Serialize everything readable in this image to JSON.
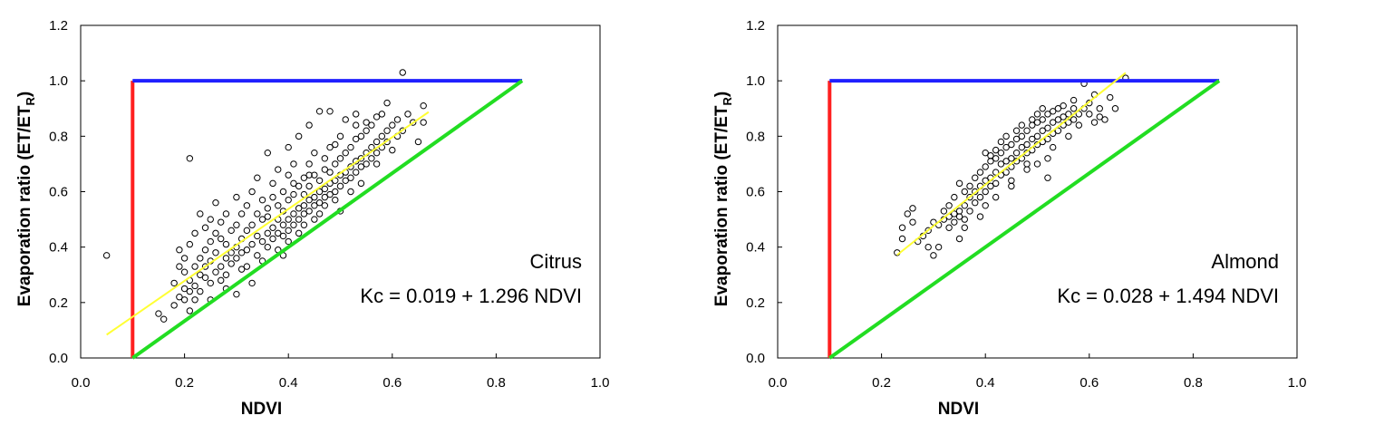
{
  "chart_data": [
    {
      "type": "scatter",
      "title": "",
      "xlabel": "NDVI",
      "ylabel_main": "Evaporation ratio (ET/ET",
      "ylabel_sub": "R",
      "ylabel_end": ")",
      "xlim": [
        0.0,
        1.0
      ],
      "ylim": [
        0.0,
        1.2
      ],
      "xticks": [
        "0.0",
        "0.2",
        "0.4",
        "0.6",
        "0.8",
        "1.0"
      ],
      "yticks": [
        "0.0",
        "0.2",
        "0.4",
        "0.6",
        "0.8",
        "1.0",
        "1.2"
      ],
      "annotation_name": "Citrus",
      "annotation_equation": "Kc = 0.019 + 1.296 NDVI",
      "regression": {
        "intercept": 0.019,
        "slope": 1.296,
        "x_range": [
          0.05,
          0.67
        ],
        "color": "#ffff33"
      },
      "ref_lines": [
        {
          "label": "vertical",
          "x": [
            0.1,
            0.1
          ],
          "y": [
            0.0,
            1.0
          ],
          "color": "#ff2020"
        },
        {
          "label": "upper",
          "x": [
            0.1,
            0.85
          ],
          "y": [
            1.0,
            1.0
          ],
          "color": "#2020ff"
        },
        {
          "label": "diagonal",
          "x": [
            0.1,
            0.85
          ],
          "y": [
            0.0,
            1.0
          ],
          "color": "#22dd22"
        }
      ],
      "points": [
        [
          0.05,
          0.37
        ],
        [
          0.15,
          0.16
        ],
        [
          0.16,
          0.14
        ],
        [
          0.18,
          0.19
        ],
        [
          0.21,
          0.72
        ],
        [
          0.62,
          1.03
        ],
        [
          0.18,
          0.27
        ],
        [
          0.19,
          0.33
        ],
        [
          0.19,
          0.22
        ],
        [
          0.19,
          0.39
        ],
        [
          0.2,
          0.25
        ],
        [
          0.2,
          0.31
        ],
        [
          0.2,
          0.21
        ],
        [
          0.2,
          0.36
        ],
        [
          0.21,
          0.28
        ],
        [
          0.21,
          0.24
        ],
        [
          0.21,
          0.41
        ],
        [
          0.21,
          0.17
        ],
        [
          0.22,
          0.33
        ],
        [
          0.22,
          0.26
        ],
        [
          0.22,
          0.45
        ],
        [
          0.22,
          0.21
        ],
        [
          0.23,
          0.3
        ],
        [
          0.23,
          0.36
        ],
        [
          0.23,
          0.52
        ],
        [
          0.23,
          0.24
        ],
        [
          0.24,
          0.29
        ],
        [
          0.24,
          0.39
        ],
        [
          0.24,
          0.47
        ],
        [
          0.24,
          0.33
        ],
        [
          0.25,
          0.27
        ],
        [
          0.25,
          0.42
        ],
        [
          0.25,
          0.5
        ],
        [
          0.25,
          0.35
        ],
        [
          0.26,
          0.31
        ],
        [
          0.26,
          0.45
        ],
        [
          0.26,
          0.38
        ],
        [
          0.26,
          0.56
        ],
        [
          0.27,
          0.33
        ],
        [
          0.27,
          0.28
        ],
        [
          0.27,
          0.43
        ],
        [
          0.27,
          0.49
        ],
        [
          0.28,
          0.36
        ],
        [
          0.28,
          0.41
        ],
        [
          0.28,
          0.52
        ],
        [
          0.28,
          0.3
        ],
        [
          0.29,
          0.38
        ],
        [
          0.29,
          0.46
        ],
        [
          0.29,
          0.34
        ],
        [
          0.3,
          0.4
        ],
        [
          0.3,
          0.48
        ],
        [
          0.3,
          0.58
        ],
        [
          0.3,
          0.23
        ],
        [
          0.3,
          0.36
        ],
        [
          0.31,
          0.43
        ],
        [
          0.31,
          0.38
        ],
        [
          0.31,
          0.52
        ],
        [
          0.32,
          0.39
        ],
        [
          0.32,
          0.46
        ],
        [
          0.32,
          0.55
        ],
        [
          0.32,
          0.33
        ],
        [
          0.33,
          0.41
        ],
        [
          0.33,
          0.48
        ],
        [
          0.33,
          0.6
        ],
        [
          0.34,
          0.44
        ],
        [
          0.34,
          0.37
        ],
        [
          0.34,
          0.52
        ],
        [
          0.34,
          0.65
        ],
        [
          0.35,
          0.42
        ],
        [
          0.35,
          0.5
        ],
        [
          0.35,
          0.35
        ],
        [
          0.35,
          0.57
        ],
        [
          0.36,
          0.45
        ],
        [
          0.36,
          0.4
        ],
        [
          0.36,
          0.54
        ],
        [
          0.36,
          0.74
        ],
        [
          0.37,
          0.47
        ],
        [
          0.37,
          0.43
        ],
        [
          0.37,
          0.58
        ],
        [
          0.37,
          0.63
        ],
        [
          0.38,
          0.45
        ],
        [
          0.38,
          0.5
        ],
        [
          0.38,
          0.55
        ],
        [
          0.38,
          0.68
        ],
        [
          0.38,
          0.39
        ],
        [
          0.39,
          0.48
        ],
        [
          0.39,
          0.44
        ],
        [
          0.39,
          0.6
        ],
        [
          0.39,
          0.53
        ],
        [
          0.4,
          0.5
        ],
        [
          0.4,
          0.46
        ],
        [
          0.4,
          0.57
        ],
        [
          0.4,
          0.66
        ],
        [
          0.4,
          0.76
        ],
        [
          0.4,
          0.42
        ],
        [
          0.41,
          0.52
        ],
        [
          0.41,
          0.48
        ],
        [
          0.41,
          0.59
        ],
        [
          0.41,
          0.7
        ],
        [
          0.42,
          0.54
        ],
        [
          0.42,
          0.5
        ],
        [
          0.42,
          0.45
        ],
        [
          0.42,
          0.62
        ],
        [
          0.42,
          0.8
        ],
        [
          0.43,
          0.55
        ],
        [
          0.43,
          0.52
        ],
        [
          0.43,
          0.65
        ],
        [
          0.43,
          0.48
        ],
        [
          0.43,
          0.59
        ],
        [
          0.44,
          0.57
        ],
        [
          0.44,
          0.53
        ],
        [
          0.44,
          0.62
        ],
        [
          0.44,
          0.7
        ],
        [
          0.44,
          0.84
        ],
        [
          0.45,
          0.58
        ],
        [
          0.45,
          0.55
        ],
        [
          0.45,
          0.5
        ],
        [
          0.45,
          0.66
        ],
        [
          0.45,
          0.74
        ],
        [
          0.46,
          0.6
        ],
        [
          0.46,
          0.56
        ],
        [
          0.46,
          0.64
        ],
        [
          0.46,
          0.52
        ],
        [
          0.46,
          0.89
        ],
        [
          0.47,
          0.61
        ],
        [
          0.47,
          0.58
        ],
        [
          0.47,
          0.68
        ],
        [
          0.47,
          0.72
        ],
        [
          0.47,
          0.55
        ],
        [
          0.48,
          0.63
        ],
        [
          0.48,
          0.59
        ],
        [
          0.48,
          0.67
        ],
        [
          0.48,
          0.76
        ],
        [
          0.48,
          0.89
        ],
        [
          0.49,
          0.64
        ],
        [
          0.49,
          0.6
        ],
        [
          0.49,
          0.7
        ],
        [
          0.49,
          0.57
        ],
        [
          0.5,
          0.66
        ],
        [
          0.5,
          0.62
        ],
        [
          0.5,
          0.72
        ],
        [
          0.5,
          0.8
        ],
        [
          0.5,
          0.53
        ],
        [
          0.51,
          0.67
        ],
        [
          0.51,
          0.64
        ],
        [
          0.51,
          0.74
        ],
        [
          0.51,
          0.86
        ],
        [
          0.52,
          0.69
        ],
        [
          0.52,
          0.65
        ],
        [
          0.52,
          0.76
        ],
        [
          0.52,
          0.6
        ],
        [
          0.53,
          0.71
        ],
        [
          0.53,
          0.67
        ],
        [
          0.53,
          0.79
        ],
        [
          0.53,
          0.88
        ],
        [
          0.54,
          0.72
        ],
        [
          0.54,
          0.69
        ],
        [
          0.54,
          0.8
        ],
        [
          0.54,
          0.63
        ],
        [
          0.55,
          0.74
        ],
        [
          0.55,
          0.7
        ],
        [
          0.55,
          0.82
        ],
        [
          0.55,
          0.85
        ],
        [
          0.56,
          0.76
        ],
        [
          0.56,
          0.72
        ],
        [
          0.56,
          0.84
        ],
        [
          0.57,
          0.78
        ],
        [
          0.57,
          0.74
        ],
        [
          0.57,
          0.87
        ],
        [
          0.58,
          0.8
        ],
        [
          0.58,
          0.76
        ],
        [
          0.58,
          0.88
        ],
        [
          0.59,
          0.82
        ],
        [
          0.59,
          0.78
        ],
        [
          0.59,
          0.92
        ],
        [
          0.6,
          0.84
        ],
        [
          0.6,
          0.75
        ],
        [
          0.61,
          0.86
        ],
        [
          0.61,
          0.8
        ],
        [
          0.62,
          0.82
        ],
        [
          0.63,
          0.88
        ],
        [
          0.64,
          0.85
        ],
        [
          0.65,
          0.78
        ],
        [
          0.66,
          0.85
        ],
        [
          0.66,
          0.91
        ],
        [
          0.41,
          0.63
        ],
        [
          0.44,
          0.66
        ],
        [
          0.36,
          0.51
        ],
        [
          0.39,
          0.37
        ],
        [
          0.33,
          0.27
        ],
        [
          0.28,
          0.25
        ],
        [
          0.25,
          0.21
        ],
        [
          0.31,
          0.32
        ],
        [
          0.49,
          0.77
        ],
        [
          0.53,
          0.84
        ],
        [
          0.57,
          0.7
        ]
      ]
    },
    {
      "type": "scatter",
      "title": "",
      "xlabel": "NDVI",
      "ylabel_main": "Evaporation ratio (ET/ET",
      "ylabel_sub": "R",
      "ylabel_end": ")",
      "xlim": [
        0.0,
        1.0
      ],
      "ylim": [
        0.0,
        1.2
      ],
      "xticks": [
        "0.0",
        "0.2",
        "0.4",
        "0.6",
        "0.8",
        "1.0"
      ],
      "yticks": [
        "0.0",
        "0.2",
        "0.4",
        "0.6",
        "0.8",
        "1.0",
        "1.2"
      ],
      "annotation_name": "Almond",
      "annotation_equation": "Kc = 0.028 + 1.494 NDVI",
      "regression": {
        "intercept": 0.028,
        "slope": 1.494,
        "x_range": [
          0.23,
          0.67
        ],
        "color": "#ffff33"
      },
      "ref_lines": [
        {
          "label": "vertical",
          "x": [
            0.1,
            0.1
          ],
          "y": [
            0.0,
            1.0
          ],
          "color": "#ff2020"
        },
        {
          "label": "upper",
          "x": [
            0.1,
            0.85
          ],
          "y": [
            1.0,
            1.0
          ],
          "color": "#2020ff"
        },
        {
          "label": "diagonal",
          "x": [
            0.1,
            0.85
          ],
          "y": [
            0.0,
            1.0
          ],
          "color": "#22dd22"
        }
      ],
      "points": [
        [
          0.23,
          0.38
        ],
        [
          0.24,
          0.43
        ],
        [
          0.24,
          0.47
        ],
        [
          0.25,
          0.52
        ],
        [
          0.26,
          0.54
        ],
        [
          0.26,
          0.49
        ],
        [
          0.27,
          0.42
        ],
        [
          0.28,
          0.44
        ],
        [
          0.29,
          0.46
        ],
        [
          0.29,
          0.4
        ],
        [
          0.3,
          0.37
        ],
        [
          0.3,
          0.49
        ],
        [
          0.31,
          0.4
        ],
        [
          0.31,
          0.48
        ],
        [
          0.32,
          0.5
        ],
        [
          0.32,
          0.53
        ],
        [
          0.33,
          0.47
        ],
        [
          0.33,
          0.51
        ],
        [
          0.33,
          0.55
        ],
        [
          0.34,
          0.52
        ],
        [
          0.34,
          0.49
        ],
        [
          0.34,
          0.58
        ],
        [
          0.35,
          0.53
        ],
        [
          0.35,
          0.51
        ],
        [
          0.35,
          0.43
        ],
        [
          0.36,
          0.55
        ],
        [
          0.36,
          0.6
        ],
        [
          0.36,
          0.5
        ],
        [
          0.37,
          0.58
        ],
        [
          0.37,
          0.62
        ],
        [
          0.37,
          0.53
        ],
        [
          0.38,
          0.6
        ],
        [
          0.38,
          0.65
        ],
        [
          0.38,
          0.56
        ],
        [
          0.39,
          0.62
        ],
        [
          0.39,
          0.67
        ],
        [
          0.39,
          0.58
        ],
        [
          0.4,
          0.64
        ],
        [
          0.4,
          0.69
        ],
        [
          0.4,
          0.6
        ],
        [
          0.4,
          0.55
        ],
        [
          0.41,
          0.65
        ],
        [
          0.41,
          0.71
        ],
        [
          0.41,
          0.62
        ],
        [
          0.41,
          0.73
        ],
        [
          0.42,
          0.67
        ],
        [
          0.42,
          0.72
        ],
        [
          0.42,
          0.63
        ],
        [
          0.42,
          0.58
        ],
        [
          0.43,
          0.7
        ],
        [
          0.43,
          0.74
        ],
        [
          0.43,
          0.66
        ],
        [
          0.43,
          0.78
        ],
        [
          0.44,
          0.71
        ],
        [
          0.44,
          0.76
        ],
        [
          0.44,
          0.67
        ],
        [
          0.44,
          0.8
        ],
        [
          0.45,
          0.72
        ],
        [
          0.45,
          0.77
        ],
        [
          0.45,
          0.69
        ],
        [
          0.45,
          0.64
        ],
        [
          0.46,
          0.74
        ],
        [
          0.46,
          0.79
        ],
        [
          0.46,
          0.71
        ],
        [
          0.46,
          0.82
        ],
        [
          0.47,
          0.76
        ],
        [
          0.47,
          0.8
        ],
        [
          0.47,
          0.72
        ],
        [
          0.47,
          0.84
        ],
        [
          0.48,
          0.77
        ],
        [
          0.48,
          0.82
        ],
        [
          0.48,
          0.74
        ],
        [
          0.48,
          0.68
        ],
        [
          0.49,
          0.79
        ],
        [
          0.49,
          0.84
        ],
        [
          0.49,
          0.75
        ],
        [
          0.49,
          0.86
        ],
        [
          0.5,
          0.8
        ],
        [
          0.5,
          0.85
        ],
        [
          0.5,
          0.77
        ],
        [
          0.5,
          0.88
        ],
        [
          0.5,
          0.7
        ],
        [
          0.51,
          0.82
        ],
        [
          0.51,
          0.86
        ],
        [
          0.51,
          0.78
        ],
        [
          0.51,
          0.9
        ],
        [
          0.52,
          0.83
        ],
        [
          0.52,
          0.88
        ],
        [
          0.52,
          0.79
        ],
        [
          0.52,
          0.72
        ],
        [
          0.53,
          0.85
        ],
        [
          0.53,
          0.89
        ],
        [
          0.53,
          0.81
        ],
        [
          0.53,
          0.76
        ],
        [
          0.54,
          0.86
        ],
        [
          0.54,
          0.9
        ],
        [
          0.54,
          0.82
        ],
        [
          0.55,
          0.87
        ],
        [
          0.55,
          0.84
        ],
        [
          0.55,
          0.91
        ],
        [
          0.56,
          0.88
        ],
        [
          0.56,
          0.85
        ],
        [
          0.56,
          0.8
        ],
        [
          0.57,
          0.9
        ],
        [
          0.57,
          0.86
        ],
        [
          0.57,
          0.93
        ],
        [
          0.58,
          0.88
        ],
        [
          0.58,
          0.84
        ],
        [
          0.59,
          0.9
        ],
        [
          0.6,
          0.92
        ],
        [
          0.6,
          0.88
        ],
        [
          0.61,
          0.95
        ],
        [
          0.61,
          0.85
        ],
        [
          0.62,
          0.9
        ],
        [
          0.62,
          0.87
        ],
        [
          0.63,
          0.86
        ],
        [
          0.64,
          0.94
        ],
        [
          0.65,
          0.9
        ],
        [
          0.67,
          1.01
        ],
        [
          0.59,
          0.99
        ],
        [
          0.36,
          0.47
        ],
        [
          0.39,
          0.51
        ],
        [
          0.42,
          0.75
        ],
        [
          0.45,
          0.62
        ],
        [
          0.48,
          0.7
        ],
        [
          0.52,
          0.65
        ],
        [
          0.35,
          0.63
        ],
        [
          0.4,
          0.74
        ]
      ]
    }
  ]
}
